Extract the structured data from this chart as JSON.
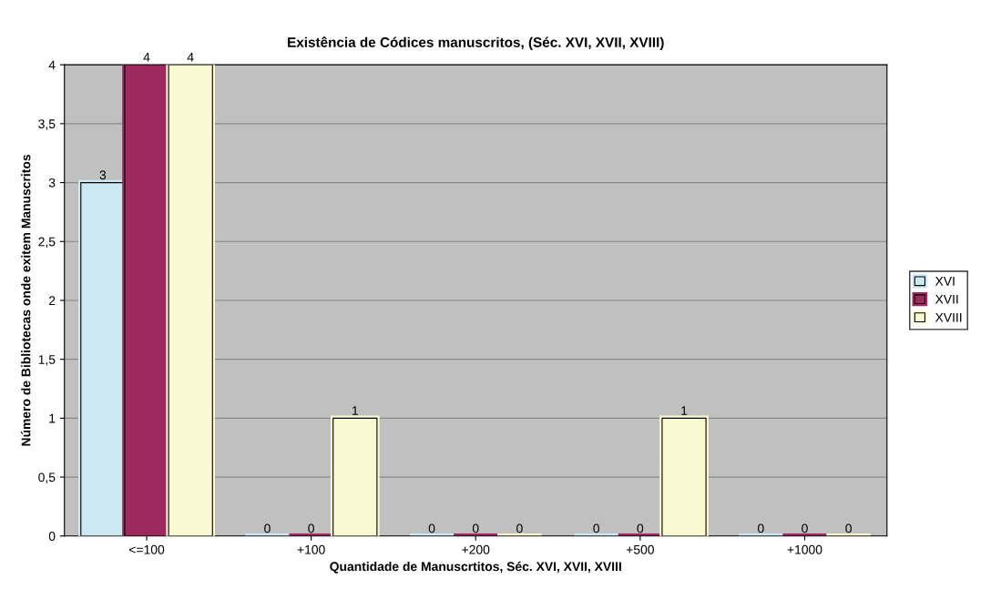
{
  "chart_data": {
    "type": "bar",
    "title": "Existência de Códices manuscritos, (Séc. XVI, XVII, XVIII)",
    "xlabel": "Quantidade de Manuscrtitos, Séc. XVI, XVII, XVIII",
    "ylabel": "Número de Bibliotecas onde exitem Manuscritos",
    "categories": [
      "<=100",
      "+100",
      "+200",
      "+500",
      "+1000"
    ],
    "series": [
      {
        "name": "XVI",
        "color": "#cce8f0",
        "values": [
          3,
          0,
          0,
          0,
          0
        ]
      },
      {
        "name": "XVII",
        "color": "#9c2a5e",
        "values": [
          4,
          0,
          0,
          0,
          0
        ]
      },
      {
        "name": "XVIII",
        "color": "#fafad2",
        "values": [
          4,
          1,
          0,
          1,
          0
        ]
      }
    ],
    "ylim": [
      0,
      4
    ],
    "yticks": [
      0,
      {
        "value": 0.5,
        "label": "0,5"
      },
      1,
      {
        "value": 1.5,
        "label": "1,5"
      },
      2,
      {
        "value": 2.5,
        "label": "2,5"
      },
      3,
      {
        "value": 3.5,
        "label": "3,5"
      },
      4
    ],
    "grid": "y",
    "legend": "right",
    "data_labels": true
  }
}
